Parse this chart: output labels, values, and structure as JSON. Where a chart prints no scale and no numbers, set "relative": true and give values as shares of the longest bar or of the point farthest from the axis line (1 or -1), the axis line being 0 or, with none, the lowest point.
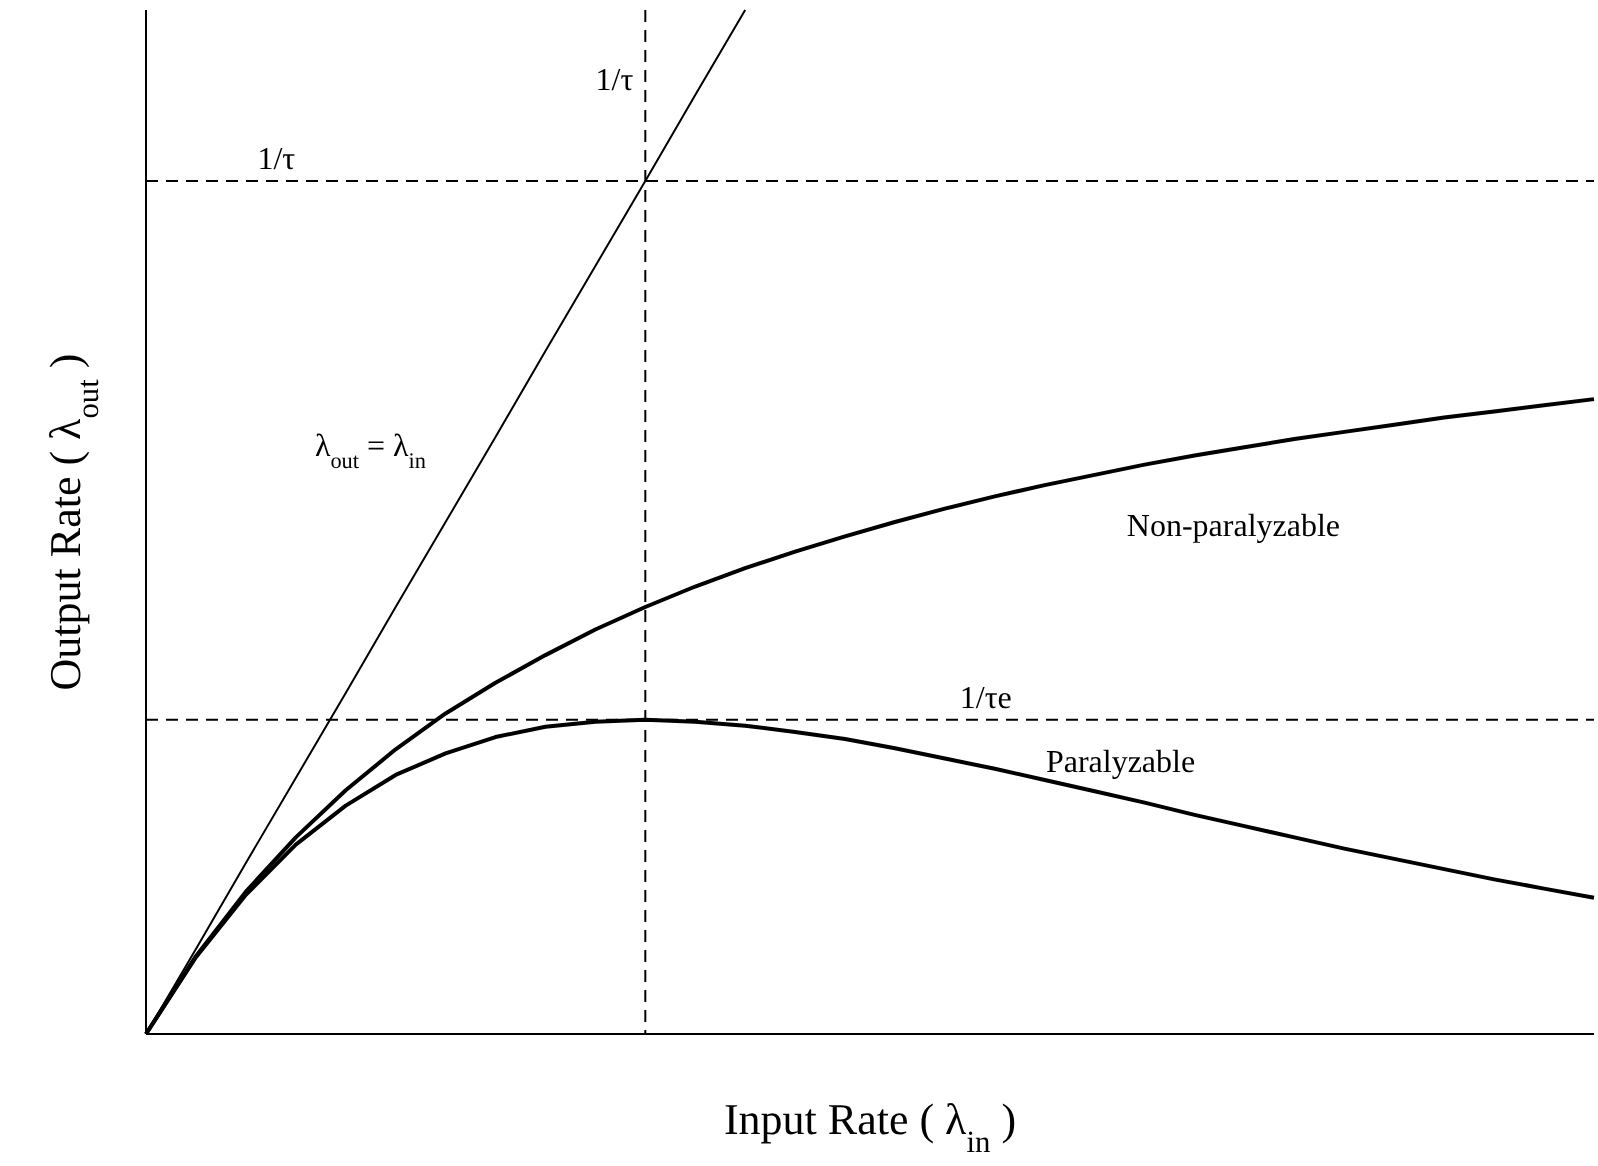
{
  "chart_data": {
    "type": "line",
    "relative": true,
    "xlabel": "Input Rate ( λ$_{in}$ )",
    "ylabel": "Output Rate ( λ$_{out}$ )",
    "categories": [
      null,
      null,
      null,
      null,
      null,
      null,
      null,
      null,
      null,
      null,
      null,
      null,
      null,
      null,
      null,
      null,
      null,
      null,
      null,
      null,
      null,
      null,
      null,
      null,
      null,
      null,
      null,
      null,
      null,
      null
    ],
    "grid": false,
    "marker": "none",
    "series": [
      {
        "name": "λ$_{out}$ = λ$_{in}$",
        "color": "#000000",
        "values": [
          0,
          0.083,
          0.167,
          0.25,
          0.333,
          0.417,
          0.5,
          0.583,
          0.667,
          0.75,
          0.833,
          0.917,
          1,
          null,
          null,
          null,
          null,
          null,
          null,
          null,
          null,
          null,
          null,
          null,
          null,
          null,
          null,
          null,
          null,
          null
        ]
      },
      {
        "name": "Non-paralyzable",
        "color": "#000000",
        "values": [
          0,
          0.076,
          0.139,
          0.192,
          0.238,
          0.278,
          0.313,
          0.343,
          0.37,
          0.395,
          0.417,
          0.437,
          0.455,
          0.471,
          0.486,
          0.5,
          0.513,
          0.525,
          0.536,
          0.546,
          0.556,
          0.565,
          0.573,
          0.581,
          0.588,
          0.595,
          0.602,
          0.608,
          0.614,
          0.62
        ]
      },
      {
        "name": "Paralyzable",
        "color": "#000000",
        "values": [
          0,
          0.075,
          0.136,
          0.185,
          0.223,
          0.253,
          0.274,
          0.29,
          0.3,
          0.305,
          0.307,
          0.305,
          0.301,
          0.295,
          0.288,
          0.279,
          0.269,
          0.259,
          0.248,
          0.237,
          0.226,
          0.214,
          0.203,
          0.192,
          0.181,
          0.171,
          0.161,
          0.151,
          0.142,
          0.133
        ]
      }
    ],
    "ref_lines": [
      {
        "axis": "x",
        "label": "1/τ",
        "line_style": "dashed"
      },
      {
        "axis": "y",
        "value": 0.833,
        "label": "1/τ",
        "line_style": "dashed"
      },
      {
        "axis": "y",
        "value": 0.307,
        "label": "1/τe",
        "line_style": "dashed"
      }
    ]
  }
}
